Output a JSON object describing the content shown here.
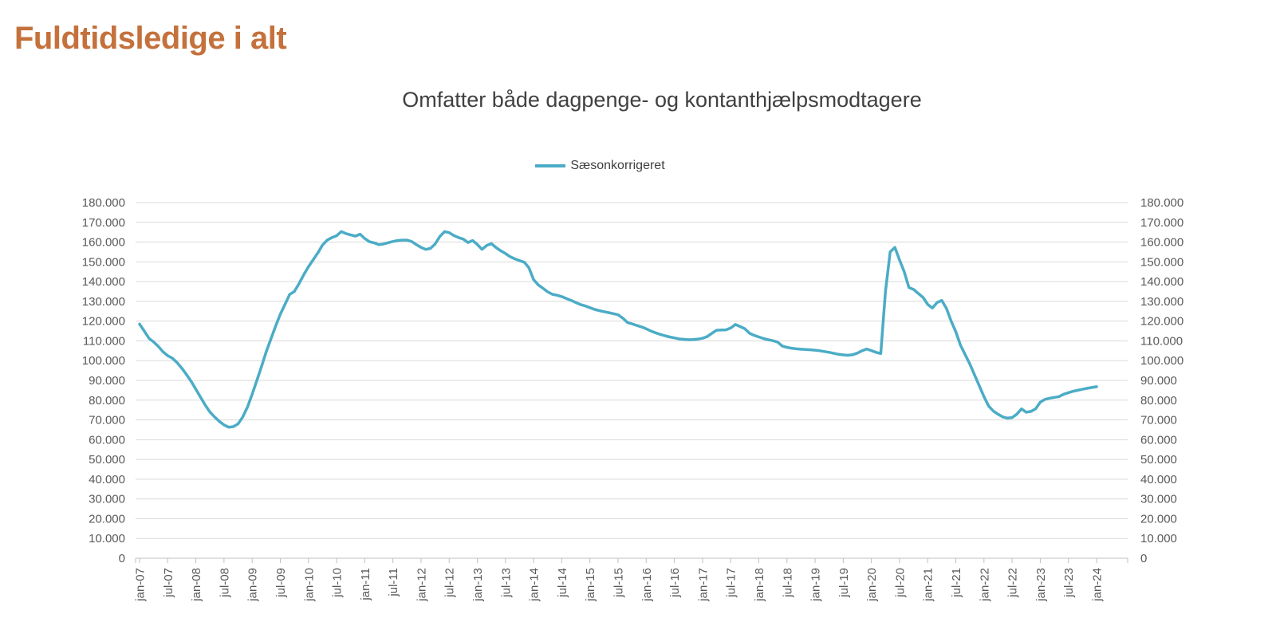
{
  "header": {
    "title": "Fuldtidsledige i alt",
    "title_color": "#C4713C"
  },
  "chart_data": {
    "type": "line",
    "title": "Omfatter både dagpenge- og kontanthjælpsmodtagere",
    "legend_position": "top",
    "grid": "horizontal",
    "gridline_color": "#D9D9D9",
    "axis_line_color": "#BFBFBF",
    "axis_label_color": "#595959",
    "ylim": [
      0,
      180000
    ],
    "y_tick_step": 10000,
    "y_tick_labels": [
      "0",
      "10.000",
      "20.000",
      "30.000",
      "40.000",
      "50.000",
      "60.000",
      "70.000",
      "80.000",
      "90.000",
      "100.000",
      "110.000",
      "120.000",
      "130.000",
      "140.000",
      "150.000",
      "160.000",
      "170.000",
      "180.000"
    ],
    "x_tick_labels": [
      "jan-07",
      "jul-07",
      "jan-08",
      "jul-08",
      "jan-09",
      "jul-09",
      "jan-10",
      "jul-10",
      "jan-11",
      "jul-11",
      "jan-12",
      "jul-12",
      "jan-13",
      "jul-13",
      "jan-14",
      "jul-14",
      "jan-15",
      "jul-15",
      "jan-16",
      "jul-16",
      "jan-17",
      "jul-17",
      "jan-18",
      "jul-18",
      "jan-19",
      "jul-19",
      "jan-20",
      "jul-20",
      "jan-21",
      "jul-21",
      "jan-22",
      "jul-22",
      "jan-23",
      "jul-23",
      "jan-24"
    ],
    "x": {
      "start": "jan-07",
      "end": "jan-24",
      "frequency": "monthly"
    },
    "series": [
      {
        "name": "Sæsonkorrigeret",
        "color": "#4BACC6",
        "values": [
          118500,
          115000,
          111300,
          109500,
          107200,
          104500,
          102500,
          101200,
          99000,
          96200,
          93000,
          89500,
          85500,
          81500,
          77500,
          74000,
          71500,
          69300,
          67500,
          66300,
          66600,
          68000,
          71500,
          76500,
          83000,
          90000,
          97000,
          104500,
          111000,
          117500,
          123500,
          128500,
          133500,
          135000,
          139000,
          143500,
          147500,
          151000,
          154500,
          158500,
          161000,
          162300,
          163200,
          165300,
          164300,
          163600,
          163000,
          164000,
          161800,
          160200,
          159600,
          158700,
          159000,
          159700,
          160300,
          160800,
          161000,
          161000,
          160300,
          158700,
          157300,
          156300,
          156800,
          159000,
          162800,
          165300,
          164800,
          163300,
          162300,
          161500,
          159800,
          160800,
          158800,
          156300,
          158300,
          159200,
          157200,
          155600,
          154200,
          152600,
          151500,
          150600,
          149800,
          147000,
          141000,
          138300,
          136600,
          134800,
          133600,
          133100,
          132400,
          131400,
          130500,
          129400,
          128400,
          127700,
          126800,
          125900,
          125300,
          124800,
          124300,
          123800,
          123200,
          121500,
          119300,
          118600,
          117800,
          117100,
          116100,
          115000,
          114100,
          113300,
          112600,
          112000,
          111500,
          111000,
          110800,
          110600,
          110700,
          110900,
          111300,
          112200,
          113800,
          115400,
          115500,
          115600,
          116500,
          118300,
          117300,
          116200,
          113900,
          112800,
          112000,
          111200,
          110600,
          110100,
          109400,
          107400,
          106700,
          106300,
          106000,
          105800,
          105600,
          105500,
          105300,
          105000,
          104600,
          104200,
          103700,
          103200,
          102900,
          102700,
          103000,
          103800,
          105000,
          105900,
          105100,
          104200,
          103600,
          135000,
          155000,
          157300,
          151000,
          145000,
          137000,
          136000,
          134000,
          132000,
          128500,
          126600,
          129400,
          130500,
          126400,
          120100,
          114600,
          107800,
          103000,
          98200,
          92700,
          87300,
          81800,
          77000,
          74500,
          72900,
          71500,
          70900,
          71200,
          72900,
          75600,
          73900,
          74300,
          75600,
          79000,
          80400,
          81000,
          81400,
          81800,
          83000,
          83800,
          84500,
          85000,
          85500,
          86000,
          86400,
          86800
        ]
      }
    ]
  }
}
